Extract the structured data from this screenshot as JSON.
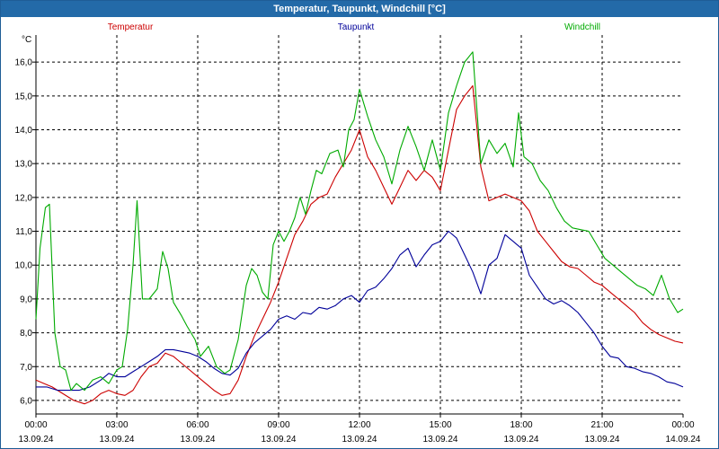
{
  "window": {
    "title": "Temperatur, Taupunkt, Windchill [°C]"
  },
  "chart_data": {
    "type": "line",
    "title": "Temperatur, Taupunkt, Windchill [°C]",
    "ylabel": "°C",
    "xlabel": "",
    "ylim": [
      5.6,
      16.8
    ],
    "xlim": [
      0,
      24
    ],
    "grid": true,
    "legend_position": "top",
    "yticks": [
      6.0,
      7.0,
      8.0,
      9.0,
      10.0,
      11.0,
      12.0,
      13.0,
      14.0,
      15.0,
      16.0
    ],
    "ytick_labels": [
      "6,0",
      "7,0",
      "8,0",
      "9,0",
      "10,0",
      "11,0",
      "12,0",
      "13,0",
      "14,0",
      "15,0",
      "16,0"
    ],
    "xticks": [
      0,
      3,
      6,
      9,
      12,
      15,
      18,
      21,
      24
    ],
    "xtick_labels": [
      {
        "time": "00:00",
        "date": "13.09.24"
      },
      {
        "time": "03:00",
        "date": "13.09.24"
      },
      {
        "time": "06:00",
        "date": "13.09.24"
      },
      {
        "time": "09:00",
        "date": "13.09.24"
      },
      {
        "time": "12:00",
        "date": "13.09.24"
      },
      {
        "time": "15:00",
        "date": "13.09.24"
      },
      {
        "time": "18:00",
        "date": "13.09.24"
      },
      {
        "time": "21:00",
        "date": "13.09.24"
      },
      {
        "time": "00:00",
        "date": "14.09.24"
      }
    ],
    "series": [
      {
        "name": "Temperatur",
        "color": "#cc0000",
        "points": [
          [
            0,
            6.6
          ],
          [
            0.3,
            6.5
          ],
          [
            0.6,
            6.4
          ],
          [
            1.0,
            6.2
          ],
          [
            1.4,
            6.0
          ],
          [
            1.8,
            5.9
          ],
          [
            2.1,
            6.0
          ],
          [
            2.4,
            6.2
          ],
          [
            2.7,
            6.3
          ],
          [
            3.0,
            6.2
          ],
          [
            3.3,
            6.15
          ],
          [
            3.6,
            6.3
          ],
          [
            3.9,
            6.7
          ],
          [
            4.2,
            7.0
          ],
          [
            4.5,
            7.1
          ],
          [
            4.8,
            7.4
          ],
          [
            5.1,
            7.3
          ],
          [
            5.4,
            7.1
          ],
          [
            5.7,
            6.9
          ],
          [
            6.0,
            6.7
          ],
          [
            6.3,
            6.5
          ],
          [
            6.6,
            6.3
          ],
          [
            6.9,
            6.15
          ],
          [
            7.2,
            6.2
          ],
          [
            7.5,
            6.6
          ],
          [
            7.8,
            7.3
          ],
          [
            8.1,
            7.9
          ],
          [
            8.4,
            8.4
          ],
          [
            8.7,
            8.9
          ],
          [
            9.0,
            9.5
          ],
          [
            9.3,
            10.2
          ],
          [
            9.6,
            10.9
          ],
          [
            9.9,
            11.3
          ],
          [
            10.2,
            11.8
          ],
          [
            10.5,
            12.0
          ],
          [
            10.8,
            12.1
          ],
          [
            11.1,
            12.6
          ],
          [
            11.4,
            13.0
          ],
          [
            11.7,
            13.4
          ],
          [
            12.0,
            14.0
          ],
          [
            12.3,
            13.2
          ],
          [
            12.6,
            12.8
          ],
          [
            12.9,
            12.3
          ],
          [
            13.2,
            11.8
          ],
          [
            13.5,
            12.3
          ],
          [
            13.8,
            12.8
          ],
          [
            14.1,
            12.5
          ],
          [
            14.4,
            12.8
          ],
          [
            14.7,
            12.6
          ],
          [
            15.0,
            12.2
          ],
          [
            15.3,
            13.4
          ],
          [
            15.6,
            14.6
          ],
          [
            15.9,
            15.0
          ],
          [
            16.2,
            15.3
          ],
          [
            16.5,
            12.9
          ],
          [
            16.8,
            11.9
          ],
          [
            17.1,
            12.0
          ],
          [
            17.4,
            12.1
          ],
          [
            17.7,
            12.0
          ],
          [
            18.0,
            11.9
          ],
          [
            18.3,
            11.6
          ],
          [
            18.6,
            11.0
          ],
          [
            18.9,
            10.7
          ],
          [
            19.2,
            10.4
          ],
          [
            19.5,
            10.1
          ],
          [
            19.8,
            9.95
          ],
          [
            20.1,
            9.9
          ],
          [
            20.4,
            9.7
          ],
          [
            20.7,
            9.5
          ],
          [
            21.0,
            9.4
          ],
          [
            21.3,
            9.2
          ],
          [
            21.6,
            9.0
          ],
          [
            21.9,
            8.8
          ],
          [
            22.2,
            8.6
          ],
          [
            22.5,
            8.3
          ],
          [
            22.8,
            8.1
          ],
          [
            23.1,
            7.95
          ],
          [
            23.4,
            7.85
          ],
          [
            23.7,
            7.75
          ],
          [
            24.0,
            7.7
          ]
        ]
      },
      {
        "name": "Taupunkt",
        "color": "#000099",
        "points": [
          [
            0,
            6.4
          ],
          [
            0.4,
            6.4
          ],
          [
            0.8,
            6.3
          ],
          [
            1.2,
            6.3
          ],
          [
            1.6,
            6.3
          ],
          [
            2.0,
            6.4
          ],
          [
            2.4,
            6.6
          ],
          [
            2.7,
            6.8
          ],
          [
            3.0,
            6.7
          ],
          [
            3.3,
            6.7
          ],
          [
            3.6,
            6.85
          ],
          [
            3.9,
            7.0
          ],
          [
            4.2,
            7.15
          ],
          [
            4.5,
            7.3
          ],
          [
            4.8,
            7.5
          ],
          [
            5.1,
            7.5
          ],
          [
            5.4,
            7.45
          ],
          [
            5.7,
            7.4
          ],
          [
            6.0,
            7.3
          ],
          [
            6.3,
            7.15
          ],
          [
            6.6,
            6.95
          ],
          [
            6.9,
            6.8
          ],
          [
            7.2,
            6.75
          ],
          [
            7.5,
            6.95
          ],
          [
            7.8,
            7.4
          ],
          [
            8.1,
            7.7
          ],
          [
            8.4,
            7.9
          ],
          [
            8.7,
            8.1
          ],
          [
            9.0,
            8.4
          ],
          [
            9.3,
            8.5
          ],
          [
            9.6,
            8.4
          ],
          [
            9.9,
            8.6
          ],
          [
            10.2,
            8.55
          ],
          [
            10.5,
            8.75
          ],
          [
            10.8,
            8.7
          ],
          [
            11.1,
            8.8
          ],
          [
            11.4,
            9.0
          ],
          [
            11.7,
            9.1
          ],
          [
            12.0,
            8.9
          ],
          [
            12.3,
            9.25
          ],
          [
            12.6,
            9.35
          ],
          [
            12.9,
            9.6
          ],
          [
            13.2,
            9.9
          ],
          [
            13.5,
            10.3
          ],
          [
            13.8,
            10.5
          ],
          [
            14.1,
            9.95
          ],
          [
            14.4,
            10.3
          ],
          [
            14.7,
            10.6
          ],
          [
            15.0,
            10.7
          ],
          [
            15.3,
            11.0
          ],
          [
            15.6,
            10.8
          ],
          [
            15.9,
            10.3
          ],
          [
            16.2,
            9.8
          ],
          [
            16.5,
            9.15
          ],
          [
            16.8,
            10.0
          ],
          [
            17.1,
            10.2
          ],
          [
            17.4,
            10.9
          ],
          [
            17.7,
            10.7
          ],
          [
            18.0,
            10.5
          ],
          [
            18.3,
            9.7
          ],
          [
            18.6,
            9.35
          ],
          [
            18.9,
            9.0
          ],
          [
            19.2,
            8.85
          ],
          [
            19.5,
            8.95
          ],
          [
            19.8,
            8.8
          ],
          [
            20.1,
            8.6
          ],
          [
            20.4,
            8.3
          ],
          [
            20.7,
            8.0
          ],
          [
            21.0,
            7.6
          ],
          [
            21.3,
            7.3
          ],
          [
            21.6,
            7.25
          ],
          [
            21.9,
            7.0
          ],
          [
            22.2,
            6.95
          ],
          [
            22.5,
            6.85
          ],
          [
            22.8,
            6.8
          ],
          [
            23.1,
            6.7
          ],
          [
            23.4,
            6.55
          ],
          [
            23.7,
            6.5
          ],
          [
            24.0,
            6.4
          ]
        ]
      },
      {
        "name": "Windchill",
        "color": "#00aa00",
        "points": [
          [
            0,
            8.4
          ],
          [
            0.15,
            10.5
          ],
          [
            0.35,
            11.7
          ],
          [
            0.5,
            11.8
          ],
          [
            0.7,
            8.0
          ],
          [
            0.9,
            7.0
          ],
          [
            1.1,
            6.9
          ],
          [
            1.3,
            6.3
          ],
          [
            1.5,
            6.5
          ],
          [
            1.8,
            6.3
          ],
          [
            2.1,
            6.6
          ],
          [
            2.4,
            6.7
          ],
          [
            2.7,
            6.5
          ],
          [
            3.0,
            6.9
          ],
          [
            3.2,
            7.0
          ],
          [
            3.4,
            8.1
          ],
          [
            3.6,
            10.0
          ],
          [
            3.75,
            11.9
          ],
          [
            3.95,
            9.0
          ],
          [
            4.2,
            9.0
          ],
          [
            4.5,
            9.3
          ],
          [
            4.7,
            10.4
          ],
          [
            4.9,
            9.9
          ],
          [
            5.1,
            8.9
          ],
          [
            5.4,
            8.5
          ],
          [
            5.6,
            8.2
          ],
          [
            5.9,
            7.8
          ],
          [
            6.1,
            7.3
          ],
          [
            6.4,
            7.6
          ],
          [
            6.7,
            7.0
          ],
          [
            7.0,
            6.8
          ],
          [
            7.2,
            6.9
          ],
          [
            7.5,
            7.8
          ],
          [
            7.8,
            9.4
          ],
          [
            8.0,
            9.9
          ],
          [
            8.2,
            9.7
          ],
          [
            8.4,
            9.2
          ],
          [
            8.6,
            9.0
          ],
          [
            8.8,
            10.6
          ],
          [
            9.0,
            11.0
          ],
          [
            9.2,
            10.7
          ],
          [
            9.4,
            11.0
          ],
          [
            9.6,
            11.4
          ],
          [
            9.8,
            12.0
          ],
          [
            10.0,
            11.5
          ],
          [
            10.2,
            12.2
          ],
          [
            10.4,
            12.8
          ],
          [
            10.6,
            12.7
          ],
          [
            10.9,
            13.3
          ],
          [
            11.2,
            13.4
          ],
          [
            11.4,
            12.9
          ],
          [
            11.6,
            14.0
          ],
          [
            11.8,
            14.3
          ],
          [
            12.0,
            15.2
          ],
          [
            12.3,
            14.4
          ],
          [
            12.6,
            13.7
          ],
          [
            12.9,
            13.2
          ],
          [
            13.2,
            12.4
          ],
          [
            13.5,
            13.4
          ],
          [
            13.8,
            14.1
          ],
          [
            14.1,
            13.5
          ],
          [
            14.4,
            12.8
          ],
          [
            14.7,
            13.7
          ],
          [
            15.0,
            12.8
          ],
          [
            15.3,
            14.5
          ],
          [
            15.6,
            15.3
          ],
          [
            15.9,
            16.0
          ],
          [
            16.2,
            16.3
          ],
          [
            16.5,
            13.0
          ],
          [
            16.8,
            13.7
          ],
          [
            17.1,
            13.3
          ],
          [
            17.4,
            13.6
          ],
          [
            17.7,
            12.9
          ],
          [
            17.9,
            14.5
          ],
          [
            18.1,
            13.2
          ],
          [
            18.4,
            13.0
          ],
          [
            18.7,
            12.5
          ],
          [
            19.0,
            12.2
          ],
          [
            19.3,
            11.7
          ],
          [
            19.6,
            11.3
          ],
          [
            19.9,
            11.1
          ],
          [
            20.2,
            11.05
          ],
          [
            20.5,
            11.0
          ],
          [
            20.8,
            10.6
          ],
          [
            21.1,
            10.2
          ],
          [
            21.4,
            10.0
          ],
          [
            21.7,
            9.8
          ],
          [
            22.0,
            9.6
          ],
          [
            22.3,
            9.4
          ],
          [
            22.6,
            9.3
          ],
          [
            22.9,
            9.1
          ],
          [
            23.2,
            9.7
          ],
          [
            23.5,
            9.0
          ],
          [
            23.8,
            8.6
          ],
          [
            24.0,
            8.7
          ]
        ]
      }
    ]
  }
}
